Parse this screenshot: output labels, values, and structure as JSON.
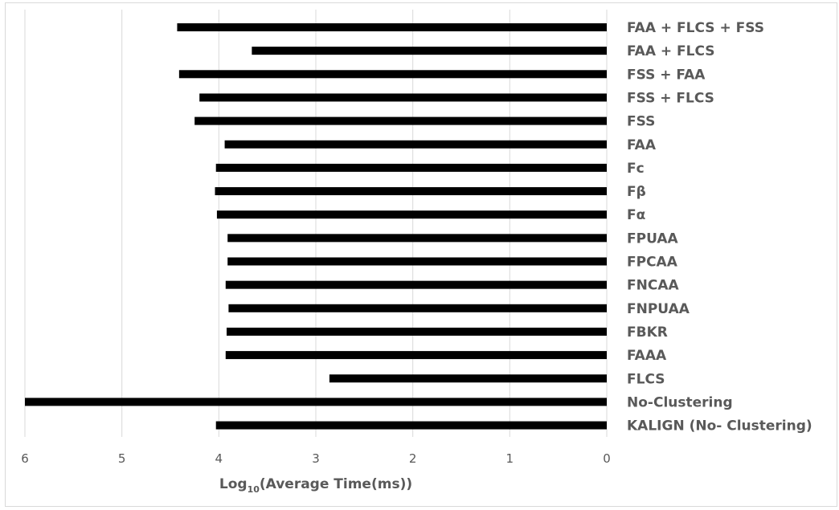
{
  "chart_data": {
    "type": "bar",
    "orientation": "horizontal",
    "x_axis_reversed": true,
    "category_labels_side": "right",
    "title": "",
    "xlabel": {
      "prefix": "Log",
      "subscript": "10",
      "suffix": "(Average Time(ms))"
    },
    "ylabel": "",
    "xlim": [
      0,
      6
    ],
    "xticks": [
      0,
      1,
      2,
      3,
      4,
      5,
      6
    ],
    "grid": "vertical",
    "legend": "none",
    "bar_color": "#000000",
    "grid_color": "#d9d9d9",
    "categories": [
      "FAA + FLCS + FSS",
      "FAA + FLCS",
      "FSS + FAA",
      "FSS + FLCS",
      "FSS",
      "FAA",
      "Fc",
      "Fβ",
      "Fα",
      "FPUAA",
      "FPCAA",
      "FNCAA",
      "FNPUAA",
      "FBKR",
      "FAAA",
      "FLCS",
      "No-Clustering",
      "KALIGN (No- Clustering)"
    ],
    "values": [
      4.43,
      3.66,
      4.41,
      4.2,
      4.25,
      3.94,
      4.03,
      4.04,
      4.02,
      3.91,
      3.91,
      3.93,
      3.9,
      3.92,
      3.93,
      2.86,
      6.0,
      4.03
    ]
  }
}
